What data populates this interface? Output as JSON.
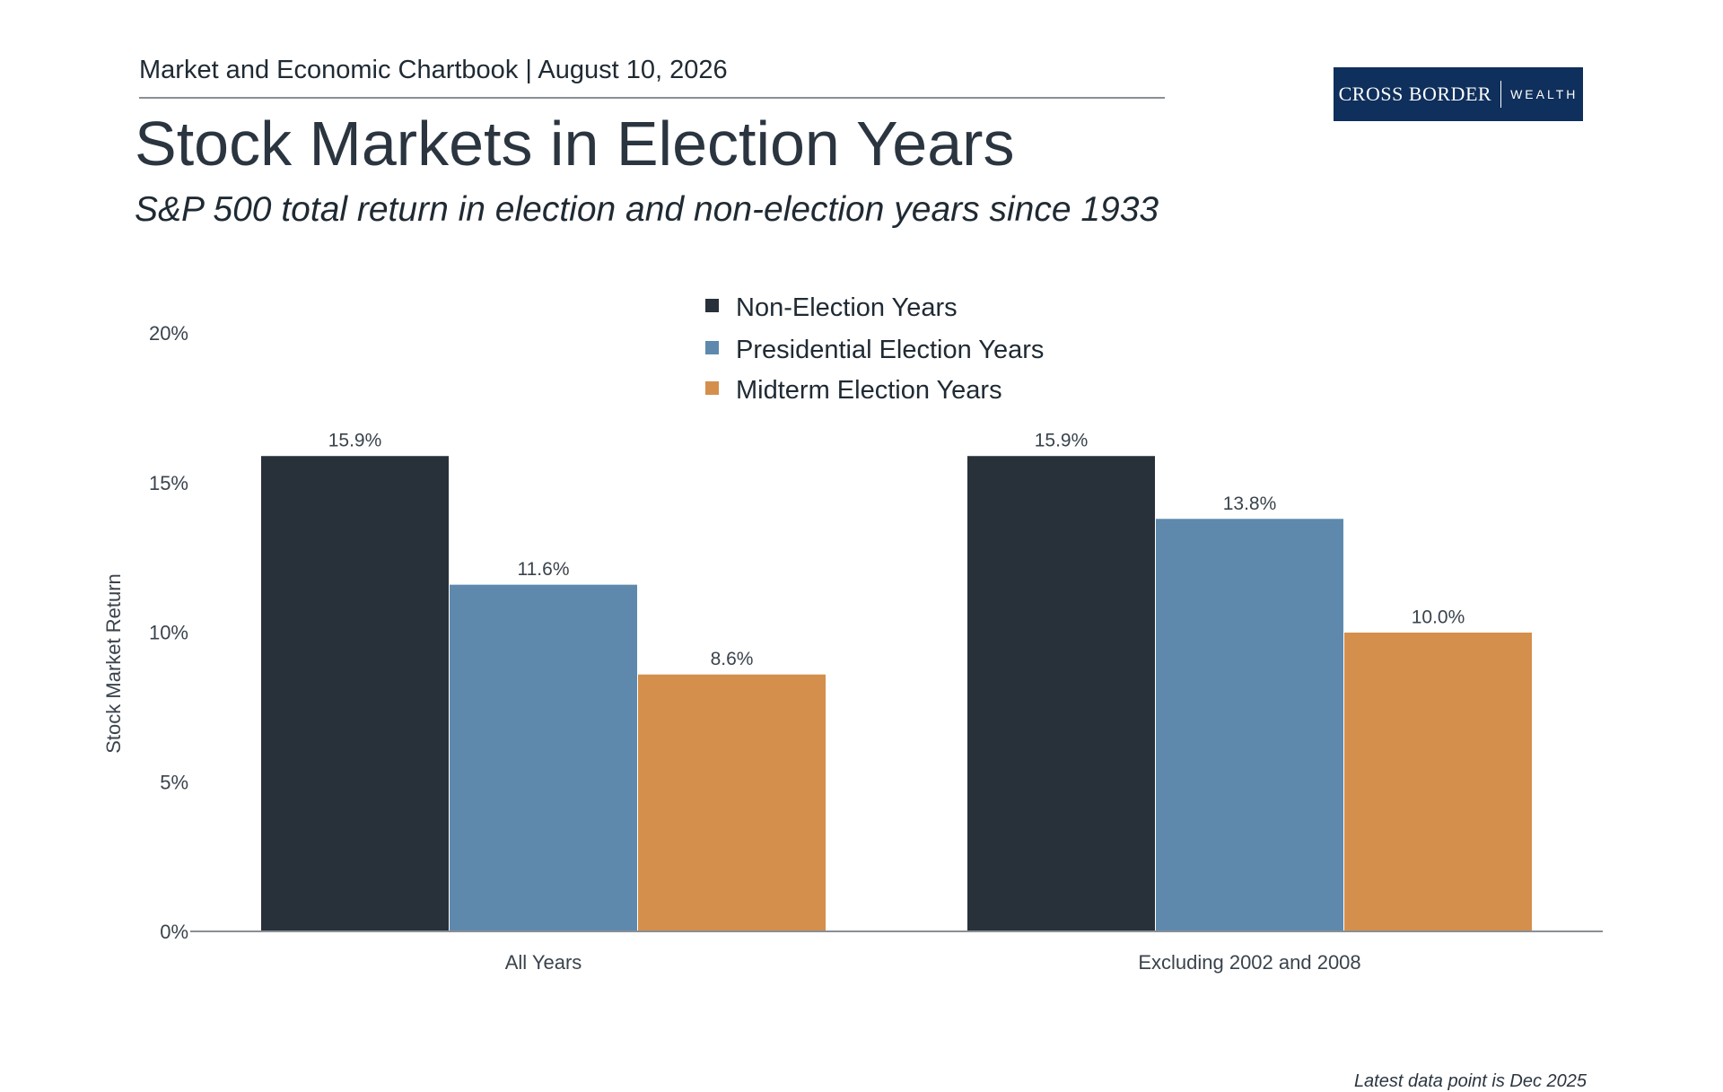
{
  "header": {
    "chartbook": "Market and Economic Chartbook | August 10, 2026",
    "title": "Stock Markets in Election Years",
    "subtitle": "S&P 500 total return in election and non-election years since 1933"
  },
  "logo": {
    "brand": "CROSS BORDER",
    "sub": "WEALTH"
  },
  "footnote": "Latest data point is Dec 2025",
  "colors": {
    "non_election": "#283139",
    "presidential": "#5e89ad",
    "midterm": "#d48f4c",
    "axis": "#8a8f94",
    "logo_bg": "#0f2f5c"
  },
  "chart_data": {
    "type": "bar",
    "categories": [
      "All Years",
      "Excluding 2002 and 2008"
    ],
    "series": [
      {
        "name": "Non-Election Years",
        "values": [
          15.9,
          15.9
        ],
        "labels": [
          "15.9%",
          "15.9%"
        ],
        "color": "#283139"
      },
      {
        "name": "Presidential Election Years",
        "values": [
          11.6,
          13.8
        ],
        "labels": [
          "11.6%",
          "13.8%"
        ],
        "color": "#5e89ad"
      },
      {
        "name": "Midterm Election Years",
        "values": [
          8.6,
          10.0
        ],
        "labels": [
          "8.6%",
          "10.0%"
        ],
        "color": "#d48f4c"
      }
    ],
    "ylabel": "Stock Market Return",
    "ylim": [
      0,
      20
    ],
    "yticks": [
      0,
      5,
      10,
      15,
      20
    ],
    "ytick_labels": [
      "0%",
      "5%",
      "10%",
      "15%",
      "20%"
    ],
    "grid": false,
    "legend_position": "top-center"
  }
}
